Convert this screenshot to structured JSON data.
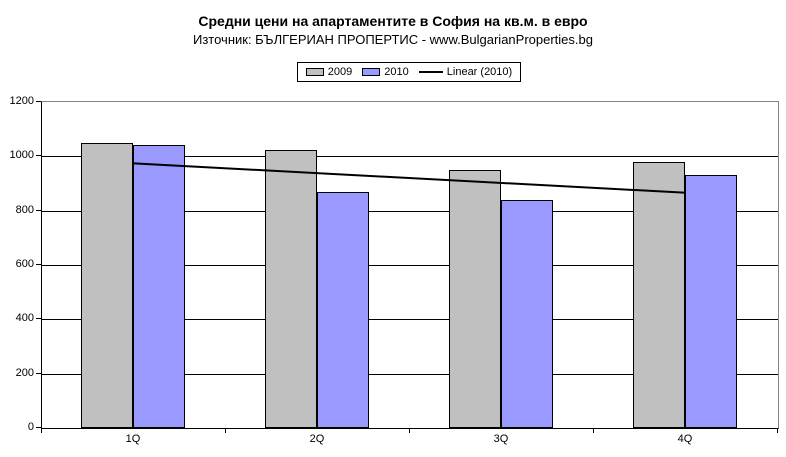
{
  "chart_data": {
    "type": "bar",
    "title": "Средни цени на апартаментите в София на кв.м. в евро",
    "subtitle": "Източник: БЪЛГЕРИАН ПРОПЕРТИС - www.BulgarianProperties.bg",
    "categories": [
      "1Q",
      "2Q",
      "3Q",
      "4Q"
    ],
    "series": [
      {
        "name": "2009",
        "color": "#c0c0c0",
        "values": [
          1050,
          1025,
          950,
          980
        ]
      },
      {
        "name": "2010",
        "color": "#9999ff",
        "values": [
          1040,
          870,
          840,
          930
        ]
      }
    ],
    "trendline": {
      "name": "Linear (2010)",
      "series": "2010",
      "start_value": 974,
      "end_value": 866,
      "color": "#000000"
    },
    "xlabel": "",
    "ylabel": "",
    "ylim": [
      0,
      1200
    ],
    "yticks": [
      0,
      200,
      400,
      600,
      800,
      1000,
      1200
    ],
    "grid": true,
    "legend_position": "top-center"
  }
}
